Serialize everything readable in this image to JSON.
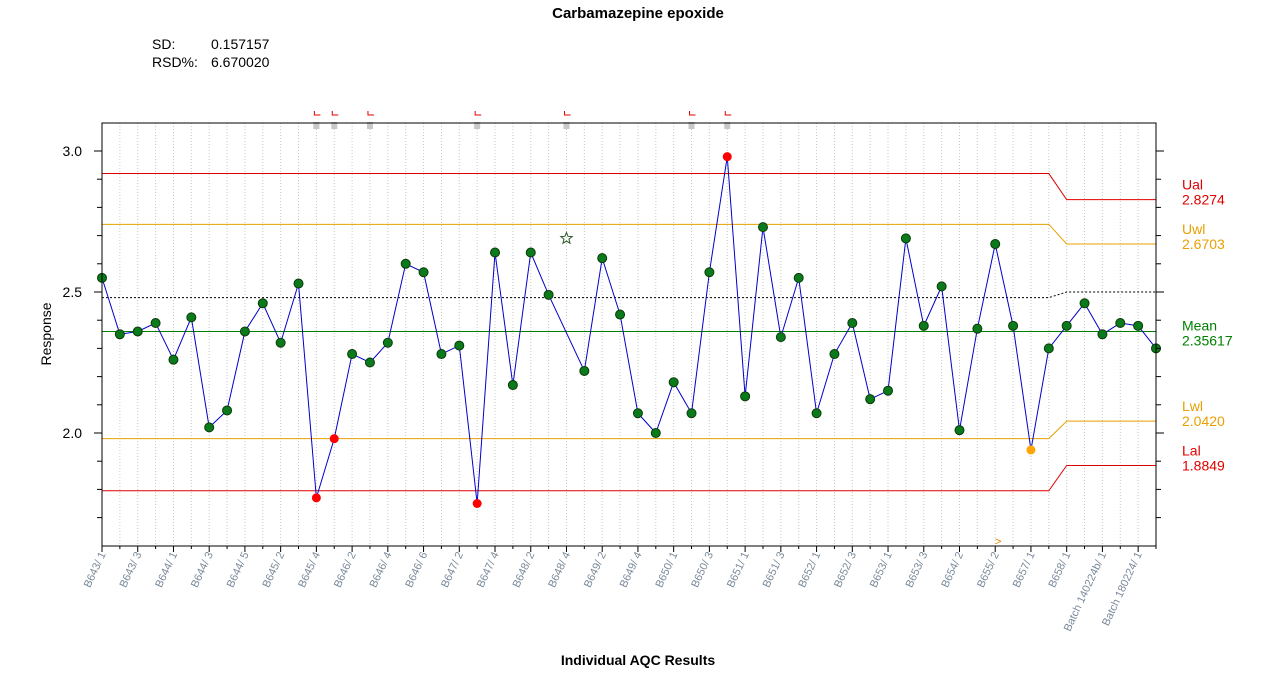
{
  "chart_data": {
    "type": "line",
    "title": "Carbamazepine epoxide",
    "stats": [
      {
        "label": "SD:",
        "value": "0.157157"
      },
      {
        "label": "RSD%:",
        "value": "6.670020"
      }
    ],
    "xlabel": "Individual AQC Results",
    "ylabel": "Response",
    "ylim": [
      1.6,
      3.1
    ],
    "yticks": [
      {
        "v": 2.0,
        "label": "2.0"
      },
      {
        "v": 2.5,
        "label": "2.5"
      },
      {
        "v": 3.0,
        "label": "3.0"
      }
    ],
    "x_tick_labels": [
      "B643/ 1",
      "B643/ 3",
      "B644/ 1",
      "B644/ 3",
      "B644/ 5",
      "B645/ 2",
      "B645/ 4",
      "B646/ 2",
      "B646/ 4",
      "B646/ 6",
      "B647/ 2",
      "B647/ 4",
      "B648/ 2",
      "B648/ 4",
      "B649/ 2",
      "B649/ 4",
      "B650/ 1",
      "B650/ 3",
      "B651/ 1",
      "B651/ 3",
      "B652/ 1",
      "B652/ 3",
      "B653/ 1",
      "B653/ 3",
      "B654/ 2",
      "B655/ 2",
      "B657/ 1",
      "B658/ 1",
      "Batch 140224b/ 1",
      "Batch 180224/ 1"
    ],
    "series": [
      {
        "color": "#0000cc",
        "points": [
          {
            "i": 0,
            "y": 2.55,
            "c": "green"
          },
          {
            "i": 1,
            "y": 2.35,
            "c": "green"
          },
          {
            "i": 2,
            "y": 2.36,
            "c": "green"
          },
          {
            "i": 3,
            "y": 2.39,
            "c": "green"
          },
          {
            "i": 4,
            "y": 2.26,
            "c": "green"
          },
          {
            "i": 5,
            "y": 2.41,
            "c": "green"
          },
          {
            "i": 6,
            "y": 2.02,
            "c": "green"
          },
          {
            "i": 7,
            "y": 2.08,
            "c": "green"
          },
          {
            "i": 8,
            "y": 2.36,
            "c": "green"
          },
          {
            "i": 9,
            "y": 2.46,
            "c": "green"
          },
          {
            "i": 10,
            "y": 2.32,
            "c": "green"
          },
          {
            "i": 11,
            "y": 2.53,
            "c": "green"
          },
          {
            "i": 12,
            "y": 1.77,
            "c": "red"
          },
          {
            "i": 13,
            "y": 1.98,
            "c": "red"
          },
          {
            "i": 14,
            "y": 2.28,
            "c": "green"
          },
          {
            "i": 15,
            "y": 2.25,
            "c": "green"
          },
          {
            "i": 16,
            "y": 2.32,
            "c": "green"
          },
          {
            "i": 17,
            "y": 2.6,
            "c": "green"
          },
          {
            "i": 18,
            "y": 2.57,
            "c": "green"
          },
          {
            "i": 19,
            "y": 2.28,
            "c": "green"
          },
          {
            "i": 20,
            "y": 2.31,
            "c": "green"
          },
          {
            "i": 21,
            "y": 1.75,
            "c": "red"
          },
          {
            "i": 22,
            "y": 2.64,
            "c": "green"
          },
          {
            "i": 23,
            "y": 2.17,
            "c": "green"
          },
          {
            "i": 24,
            "y": 2.64,
            "c": "green"
          },
          {
            "i": 25,
            "y": 2.49,
            "c": "green"
          },
          {
            "i": 27,
            "y": 2.22,
            "c": "green"
          },
          {
            "i": 28,
            "y": 2.62,
            "c": "green"
          },
          {
            "i": 29,
            "y": 2.42,
            "c": "green"
          },
          {
            "i": 30,
            "y": 2.07,
            "c": "green"
          },
          {
            "i": 31,
            "y": 2.0,
            "c": "green"
          },
          {
            "i": 32,
            "y": 2.18,
            "c": "green"
          },
          {
            "i": 33,
            "y": 2.07,
            "c": "green"
          },
          {
            "i": 34,
            "y": 2.57,
            "c": "green"
          },
          {
            "i": 35,
            "y": 2.98,
            "c": "red"
          },
          {
            "i": 36,
            "y": 2.13,
            "c": "green"
          },
          {
            "i": 37,
            "y": 2.73,
            "c": "green"
          },
          {
            "i": 38,
            "y": 2.34,
            "c": "green"
          },
          {
            "i": 39,
            "y": 2.55,
            "c": "green"
          },
          {
            "i": 40,
            "y": 2.07,
            "c": "green"
          },
          {
            "i": 41,
            "y": 2.28,
            "c": "green"
          },
          {
            "i": 42,
            "y": 2.39,
            "c": "green"
          },
          {
            "i": 43,
            "y": 2.12,
            "c": "green"
          },
          {
            "i": 44,
            "y": 2.15,
            "c": "green"
          },
          {
            "i": 45,
            "y": 2.69,
            "c": "green"
          },
          {
            "i": 46,
            "y": 2.38,
            "c": "green"
          },
          {
            "i": 47,
            "y": 2.52,
            "c": "green"
          },
          {
            "i": 48,
            "y": 2.01,
            "c": "green"
          },
          {
            "i": 49,
            "y": 2.37,
            "c": "green"
          },
          {
            "i": 50,
            "y": 2.67,
            "c": "green"
          },
          {
            "i": 51,
            "y": 2.38,
            "c": "green"
          },
          {
            "i": 52,
            "y": 1.94,
            "c": "orange"
          },
          {
            "i": 53,
            "y": 2.3,
            "c": "green"
          },
          {
            "i": 54,
            "y": 2.38,
            "c": "green"
          },
          {
            "i": 55,
            "y": 2.46,
            "c": "green"
          },
          {
            "i": 56,
            "y": 2.35,
            "c": "green"
          },
          {
            "i": 57,
            "y": 2.39,
            "c": "green"
          },
          {
            "i": 58,
            "y": 2.38,
            "c": "green"
          },
          {
            "i": 59,
            "y": 2.3,
            "c": "green"
          }
        ]
      }
    ],
    "excluded_points": [
      {
        "i": 26,
        "y": 2.69,
        "marker": "star"
      }
    ],
    "flagged_indices": [
      12,
      13,
      15,
      21,
      26,
      33,
      35
    ],
    "limits": [
      {
        "label": "Ual",
        "value": "2.8274",
        "color": "#e00000",
        "y1": 2.92,
        "y2": 2.8274
      },
      {
        "label": "Uwl",
        "value": "2.6703",
        "color": "#e8a000",
        "y1": 2.74,
        "y2": 2.6703
      },
      {
        "label": "Mean",
        "value": "2.35617",
        "color": "#008000",
        "y1": 2.36,
        "y2": 2.36
      },
      {
        "label": "Lwl",
        "value": "2.0420",
        "color": "#e8a000",
        "y1": 1.98,
        "y2": 2.042
      },
      {
        "label": "Lal",
        "value": "1.8849",
        "color": "#e00000",
        "y1": 1.795,
        "y2": 1.8849
      }
    ],
    "running_mean": {
      "y1": 2.48,
      "y2": 2.5,
      "style": "dotted"
    },
    "limit_change_index": 53,
    "marker_colors": {
      "green": "#0a7a1a",
      "red": "#ff0000",
      "orange": "#ffa500"
    },
    "grid": "vertical-dotted",
    "n_points": 60
  }
}
